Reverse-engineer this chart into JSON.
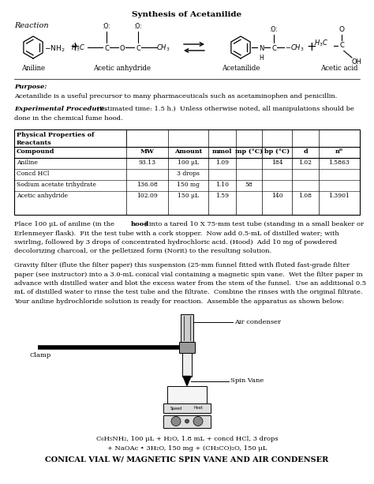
{
  "title": "Synthesis of Acetanilide",
  "background_color": "#ffffff",
  "reaction_label": "Reaction",
  "aniline_label": "Aniline",
  "acetic_anhydride_label": "Acetic anhydride",
  "acetanilide_label": "Acetanilide",
  "acetic_acid_label": "Acetic acid",
  "purpose_bold": "Purpose:",
  "purpose_text": "Acetanilide is a useful precursor to many pharmaceuticals such as acetaminophen and penicillin.",
  "exp_bold": "Experimental Procedure.",
  "exp_line1": " (Estimated time: 1.5 h.)  Unless otherwise noted, all manipulations should be",
  "exp_line2": "done in the chemical fume hood.",
  "table_header_line1": "Physical Properties of",
  "table_header_line2": "Reactants",
  "table_cols": [
    "Compound",
    "MW",
    "Amount",
    "mmol",
    "mp (°C)",
    "bp (°C)",
    "d",
    "nD"
  ],
  "table_rows": [
    [
      "Aniline",
      "93.13",
      "100 μL",
      "1.09",
      "",
      "184",
      "1.02",
      "1.5863"
    ],
    [
      "Concd HCl",
      "",
      "3 drops",
      "",
      "",
      "",
      "",
      ""
    ],
    [
      "Sodium acetate trihydrate",
      "136.08",
      "150 mg",
      "1.10",
      "58",
      "",
      "",
      ""
    ],
    [
      "Acetic anhydride",
      "102.09",
      "150 μL",
      "1.59",
      "",
      "140",
      "1.08",
      "1.3901"
    ]
  ],
  "para1_lines": [
    "Place 100 μL of aniline (in the hood) into a tared 10 X 75-mm test tube (standing in a small beaker or",
    "Erlenmeyer flask).  Fit the test tube with a cork stopper.  Now add 0.5-mL of distilled water; with",
    "swirling, followed by 3 drops of concentrated hydrochloric acid. (Hood)  Add 10 mg of powdered",
    "decolorizing charcoal, or the pelletized form (Norit) to the resulting solution."
  ],
  "para2_lines": [
    "Gravity filter (flute the filter paper) this suspension (25-mm funnel fitted with fluted fast-grade filter",
    "paper (see instructor) into a 3.0-mL conical vial containing a magnetic spin vane.  Wet the filter paper in",
    "advance with distilled water and blot the excess water from the stem of the funnel.  Use an additional 0.5",
    "mL of distilled water to rinse the test tube and the filtrate.  Combine the rinses with the original filtrate.",
    "Your aniline hydrochloride solution is ready for reaction.  Assemble the apparatus as shown below:"
  ],
  "caption1": "C₆H₅NH₂, 100 μL + H₂O, 1.8 mL + concd HCl, 3 drops",
  "caption2": "+ NaOAc • 3H₂O, 150 mg + (CH₃CO)₂O, 150 μL",
  "caption3": "CONICAL VIAL W/ MAGNETIC SPIN VANE AND AIR CONDENSER",
  "air_condenser_label": "Air condenser",
  "clamp_label": "Clamp",
  "spin_vane_label": "Spin Vane"
}
